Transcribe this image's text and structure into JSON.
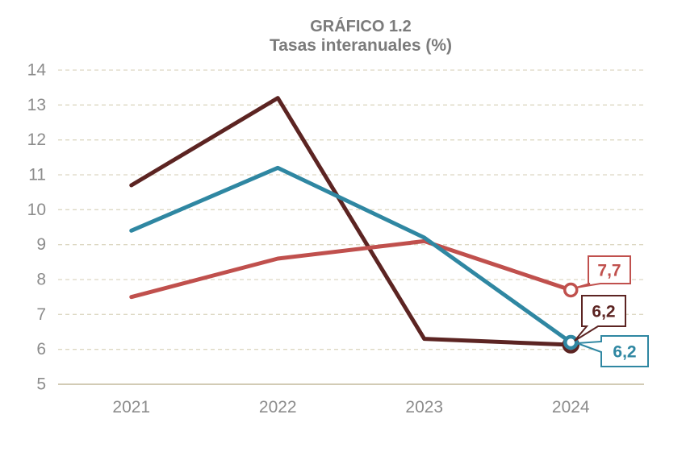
{
  "chart_data": {
    "type": "line",
    "title": "GRÁFICO 1.2",
    "subtitle": "Tasas interanuales (%)",
    "categories": [
      "2021",
      "2022",
      "2023",
      "2024"
    ],
    "series": [
      {
        "name": "dark-red-line",
        "color": "#5C2422",
        "values": [
          10.7,
          13.2,
          6.3,
          6.2
        ],
        "end_label": "6,2",
        "end_marker": "open-circle"
      },
      {
        "name": "red-line",
        "color": "#C0504D",
        "values": [
          7.5,
          8.6,
          9.1,
          7.7
        ],
        "end_label": "7,7",
        "end_marker": "open-circle"
      },
      {
        "name": "teal-line",
        "color": "#2F87A2",
        "values": [
          9.4,
          11.2,
          9.2,
          6.2
        ],
        "end_label": "6,2",
        "end_marker": "open-circle"
      }
    ],
    "ylim": [
      5,
      14
    ],
    "yticks": [
      "5",
      "6",
      "7",
      "8",
      "9",
      "10",
      "11",
      "12",
      "13",
      "14"
    ],
    "xlabel": "",
    "ylabel": "",
    "grid": "horizontal-dashed",
    "legend": "none",
    "decimal_separator": ","
  },
  "styles": {
    "title_color": "#7B7B7B",
    "axis_label_color": "#8C8C8C",
    "gridline_color": "#DDD8C3",
    "axis_line_color": "#D2CBB5",
    "background": "#FFFFFF",
    "callout_fill": "#FFFFFF"
  }
}
